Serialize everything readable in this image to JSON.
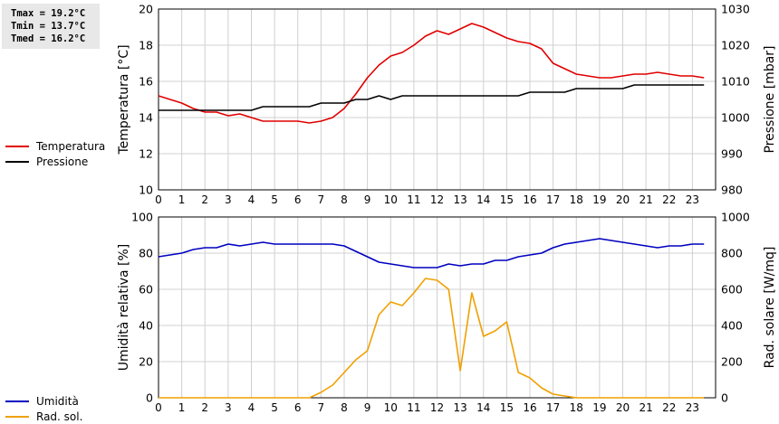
{
  "stats": {
    "tmax": "Tmax = 19.2°C",
    "tmin": "Tmin = 13.7°C",
    "tmed": "Tmed = 16.2°C"
  },
  "chart_data": [
    {
      "type": "line",
      "grid": true,
      "legend_placement": "left",
      "x_ticks": [
        0,
        1,
        2,
        3,
        4,
        5,
        6,
        7,
        8,
        9,
        10,
        11,
        12,
        13,
        14,
        15,
        16,
        17,
        18,
        19,
        20,
        21,
        22,
        23
      ],
      "xlim": [
        0,
        24
      ],
      "y_left": {
        "label": "Temperatura [°C]",
        "lim": [
          10,
          20
        ],
        "ticks": [
          10,
          12,
          14,
          16,
          18,
          20
        ]
      },
      "y_right": {
        "label": "Pressione [mbar]",
        "lim": [
          980,
          1030
        ],
        "ticks": [
          980,
          990,
          1000,
          1010,
          1020,
          1030
        ]
      },
      "series": [
        {
          "name": "Temperatura",
          "axis": "left",
          "color": "#e00000",
          "x": [
            0,
            0.5,
            1,
            1.5,
            2,
            2.5,
            3,
            3.5,
            4,
            4.5,
            5,
            5.5,
            6,
            6.5,
            7,
            7.5,
            8,
            8.5,
            9,
            9.5,
            10,
            10.5,
            11,
            11.5,
            12,
            12.5,
            13,
            13.5,
            14,
            14.5,
            15,
            15.5,
            16,
            16.5,
            17,
            17.5,
            18,
            18.5,
            19,
            19.5,
            20,
            20.5,
            21,
            21.5,
            22,
            22.5,
            23,
            23.5
          ],
          "y": [
            15.2,
            15.0,
            14.8,
            14.5,
            14.3,
            14.3,
            14.1,
            14.2,
            14.0,
            13.8,
            13.8,
            13.8,
            13.8,
            13.7,
            13.8,
            14.0,
            14.5,
            15.3,
            16.2,
            16.9,
            17.4,
            17.6,
            18.0,
            18.5,
            18.8,
            18.6,
            18.9,
            19.2,
            19.0,
            18.7,
            18.4,
            18.2,
            18.1,
            17.8,
            17.0,
            16.7,
            16.4,
            16.3,
            16.2,
            16.2,
            16.3,
            16.4,
            16.4,
            16.5,
            16.4,
            16.3,
            16.3,
            16.2
          ]
        },
        {
          "name": "Pressione",
          "axis": "right",
          "color": "#000000",
          "x": [
            0,
            0.5,
            1,
            1.5,
            2,
            2.5,
            3,
            3.5,
            4,
            4.5,
            5,
            5.5,
            6,
            6.5,
            7,
            7.5,
            8,
            8.5,
            9,
            9.5,
            10,
            10.5,
            11,
            11.5,
            12,
            12.5,
            13,
            13.5,
            14,
            14.5,
            15,
            15.5,
            16,
            16.5,
            17,
            17.5,
            18,
            18.5,
            19,
            19.5,
            20,
            20.5,
            21,
            21.5,
            22,
            22.5,
            23,
            23.5
          ],
          "y": [
            1002,
            1002,
            1002,
            1002,
            1002,
            1002,
            1002,
            1002,
            1002,
            1003,
            1003,
            1003,
            1003,
            1003,
            1004,
            1004,
            1004,
            1005,
            1005,
            1006,
            1005,
            1006,
            1006,
            1006,
            1006,
            1006,
            1006,
            1006,
            1006,
            1006,
            1006,
            1006,
            1007,
            1007,
            1007,
            1007,
            1008,
            1008,
            1008,
            1008,
            1008,
            1009,
            1009,
            1009,
            1009,
            1009,
            1009,
            1009
          ]
        }
      ]
    },
    {
      "type": "line",
      "grid": true,
      "legend_placement": "left",
      "x_ticks": [
        0,
        1,
        2,
        3,
        4,
        5,
        6,
        7,
        8,
        9,
        10,
        11,
        12,
        13,
        14,
        15,
        16,
        17,
        18,
        19,
        20,
        21,
        22,
        23
      ],
      "xlim": [
        0,
        24
      ],
      "y_left": {
        "label": "Umidità relativa [%]",
        "lim": [
          0,
          100
        ],
        "ticks": [
          0,
          20,
          40,
          60,
          80,
          100
        ]
      },
      "y_right": {
        "label": "Rad. solare [W/mq]",
        "lim": [
          0,
          1000
        ],
        "ticks": [
          0,
          200,
          400,
          600,
          800,
          1000
        ]
      },
      "series": [
        {
          "name": "Umidità",
          "axis": "left",
          "color": "#0000c0",
          "x": [
            0,
            0.5,
            1,
            1.5,
            2,
            2.5,
            3,
            3.5,
            4,
            4.5,
            5,
            5.5,
            6,
            6.5,
            7,
            7.5,
            8,
            8.5,
            9,
            9.5,
            10,
            10.5,
            11,
            11.5,
            12,
            12.5,
            13,
            13.5,
            14,
            14.5,
            15,
            15.5,
            16,
            16.5,
            17,
            17.5,
            18,
            18.5,
            19,
            19.5,
            20,
            20.5,
            21,
            21.5,
            22,
            22.5,
            23,
            23.5
          ],
          "y": [
            78,
            79,
            80,
            82,
            83,
            83,
            85,
            84,
            85,
            86,
            85,
            85,
            85,
            85,
            85,
            85,
            84,
            81,
            78,
            75,
            74,
            73,
            72,
            72,
            72,
            74,
            73,
            74,
            74,
            76,
            76,
            78,
            79,
            80,
            83,
            85,
            86,
            87,
            88,
            87,
            86,
            85,
            84,
            83,
            84,
            84,
            85,
            85
          ]
        },
        {
          "name": "Rad. sol.",
          "axis": "right",
          "color": "#f0a000",
          "x": [
            0,
            0.5,
            1,
            1.5,
            2,
            2.5,
            3,
            3.5,
            4,
            4.5,
            5,
            5.5,
            6,
            6.5,
            7,
            7.5,
            8,
            8.5,
            9,
            9.5,
            10,
            10.5,
            11,
            11.5,
            12,
            12.5,
            13,
            13.5,
            14,
            14.5,
            15,
            15.5,
            16,
            16.5,
            17,
            17.5,
            18,
            18.5,
            19,
            19.5,
            20,
            20.5,
            21,
            21.5,
            22,
            22.5,
            23,
            23.5
          ],
          "y": [
            0,
            0,
            0,
            0,
            0,
            0,
            0,
            0,
            0,
            0,
            0,
            0,
            0,
            0,
            30,
            70,
            140,
            210,
            260,
            460,
            530,
            510,
            580,
            660,
            650,
            600,
            150,
            580,
            340,
            370,
            420,
            140,
            110,
            55,
            20,
            10,
            0,
            0,
            0,
            0,
            0,
            0,
            0,
            0,
            0,
            0,
            0,
            0
          ]
        }
      ]
    }
  ]
}
